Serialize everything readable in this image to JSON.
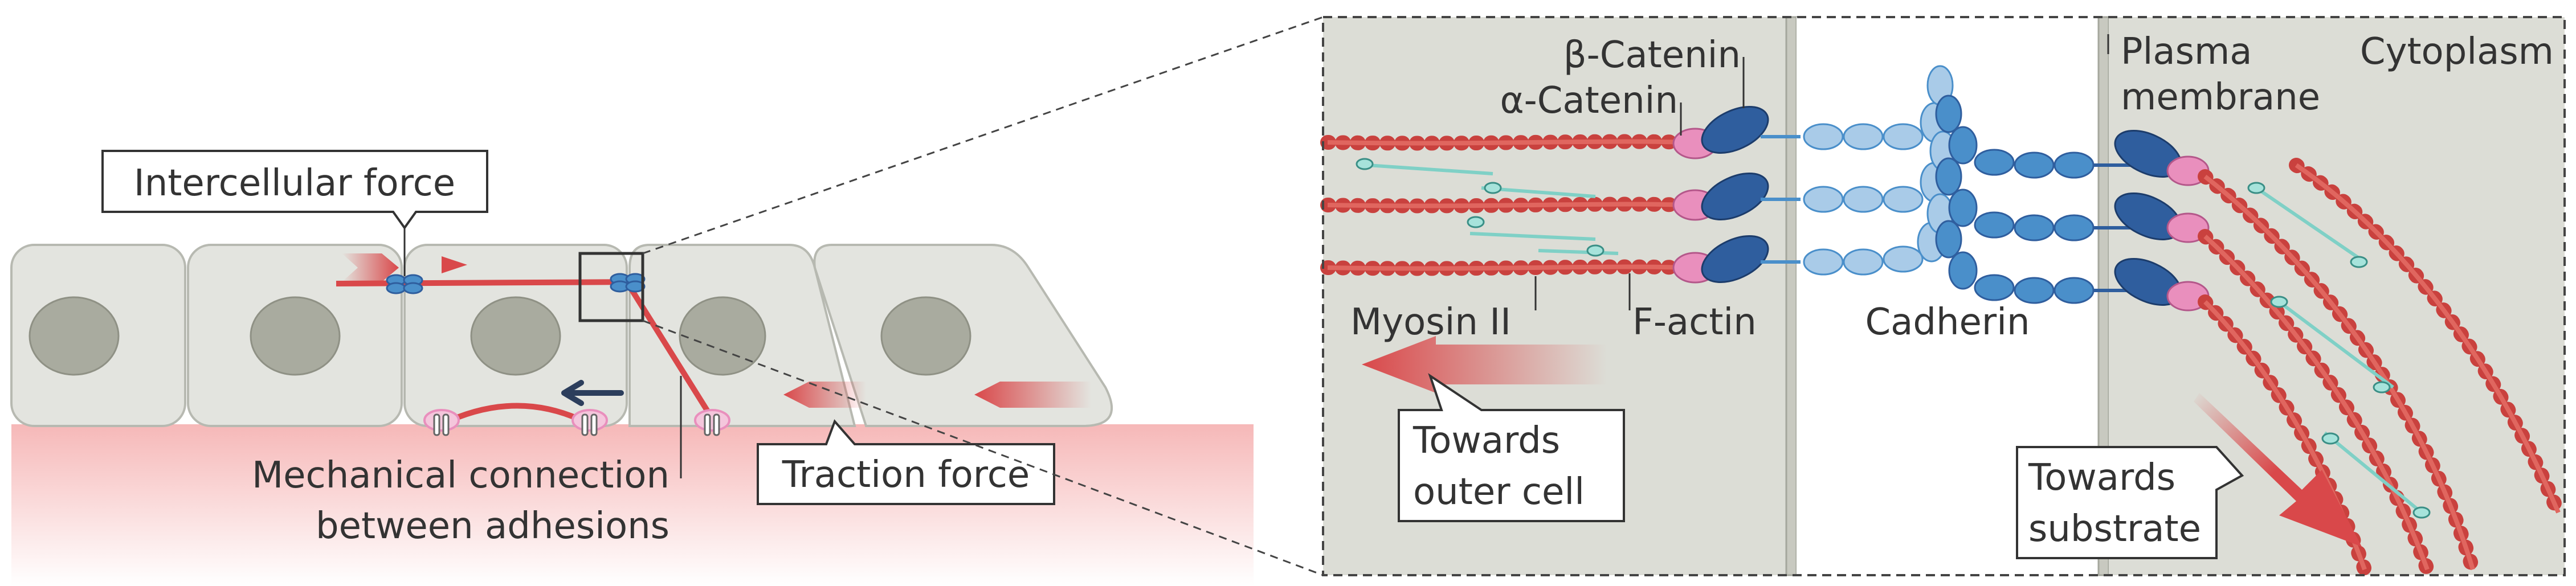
{
  "labels": {
    "intercellular_force": "Intercellular force",
    "mechanical_connection_line1": "Mechanical connection",
    "mechanical_connection_line2": "between adhesions",
    "traction_force": "Traction force",
    "beta_catenin": "β-Catenin",
    "alpha_catenin": "α-Catenin",
    "plasma_membrane_line1": "Plasma",
    "plasma_membrane_line2": "membrane",
    "cytoplasm": "Cytoplasm",
    "myosin_ii": "Myosin II",
    "f_actin": "F-actin",
    "cadherin": "Cadherin",
    "towards_outer_cell_line1": "Towards",
    "towards_outer_cell_line2": "outer cell",
    "towards_substrate_line1": "Towards",
    "towards_substrate_line2": "substrate"
  },
  "colors": {
    "cell_fill": "#e3e4df",
    "cell_stroke": "#b7b9b1",
    "nucleus": "#a9ab9f",
    "force_red": "#d9484a",
    "actin_red": "#c9413e",
    "catenin_dark_blue": "#2f5e9e",
    "cadherin_blue": "#4a8fca",
    "cadherin_light_blue": "#a9cbe8",
    "vinculin_pink": "#e98fbd",
    "myosin_teal": "#7fd0c6",
    "substrate_pink": "#f7c5c5",
    "panel_grey": "#dcddd6"
  },
  "icons": {
    "adhesion_junction": "cadherin-junction-icon",
    "focal_adhesion": "focal-adhesion-icon",
    "arrow_left": "arrow-left-icon",
    "arrow_right": "arrow-right-icon"
  }
}
